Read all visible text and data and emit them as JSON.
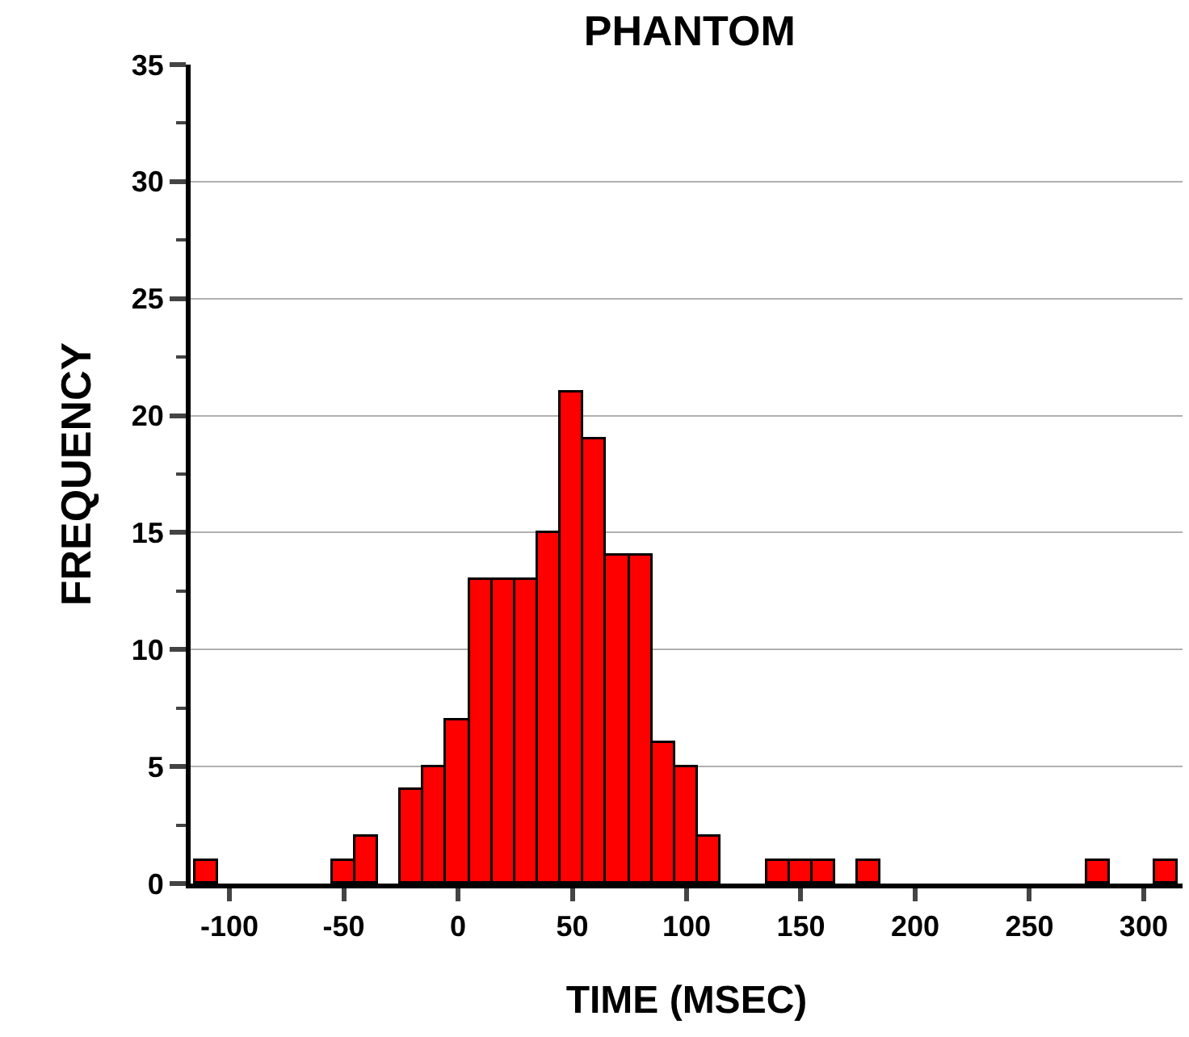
{
  "chart_data": {
    "type": "histogram",
    "title": "PHANTOM",
    "xlabel": "TIME (MSEC)",
    "ylabel": "FREQUENCY",
    "bins": [
      -115,
      -105,
      -95,
      -85,
      -75,
      -65,
      -55,
      -45,
      -35,
      -25,
      -15,
      -5,
      5,
      15,
      25,
      35,
      45,
      55,
      65,
      75,
      85,
      95,
      105,
      115,
      125,
      135,
      145,
      155,
      165,
      175,
      185,
      195,
      205,
      215,
      225,
      235,
      245,
      255,
      265,
      275,
      285,
      295,
      305,
      315
    ],
    "values": [
      1,
      0,
      0,
      0,
      0,
      0,
      1,
      2,
      0,
      4,
      5,
      7,
      13,
      13,
      13,
      15,
      21,
      19,
      14,
      14,
      6,
      5,
      2,
      0,
      0,
      1,
      1,
      1,
      0,
      1,
      0,
      0,
      0,
      0,
      0,
      0,
      0,
      0,
      0,
      1,
      0,
      0,
      1
    ],
    "color": "#ff0000",
    "xlim": [
      -117,
      317
    ],
    "xticks": [
      -100,
      -50,
      0,
      50,
      100,
      150,
      200,
      250,
      300
    ],
    "ylim": [
      0,
      35
    ],
    "yticks": [
      0,
      5,
      10,
      15,
      20,
      25,
      30,
      35
    ],
    "grid": "y"
  }
}
